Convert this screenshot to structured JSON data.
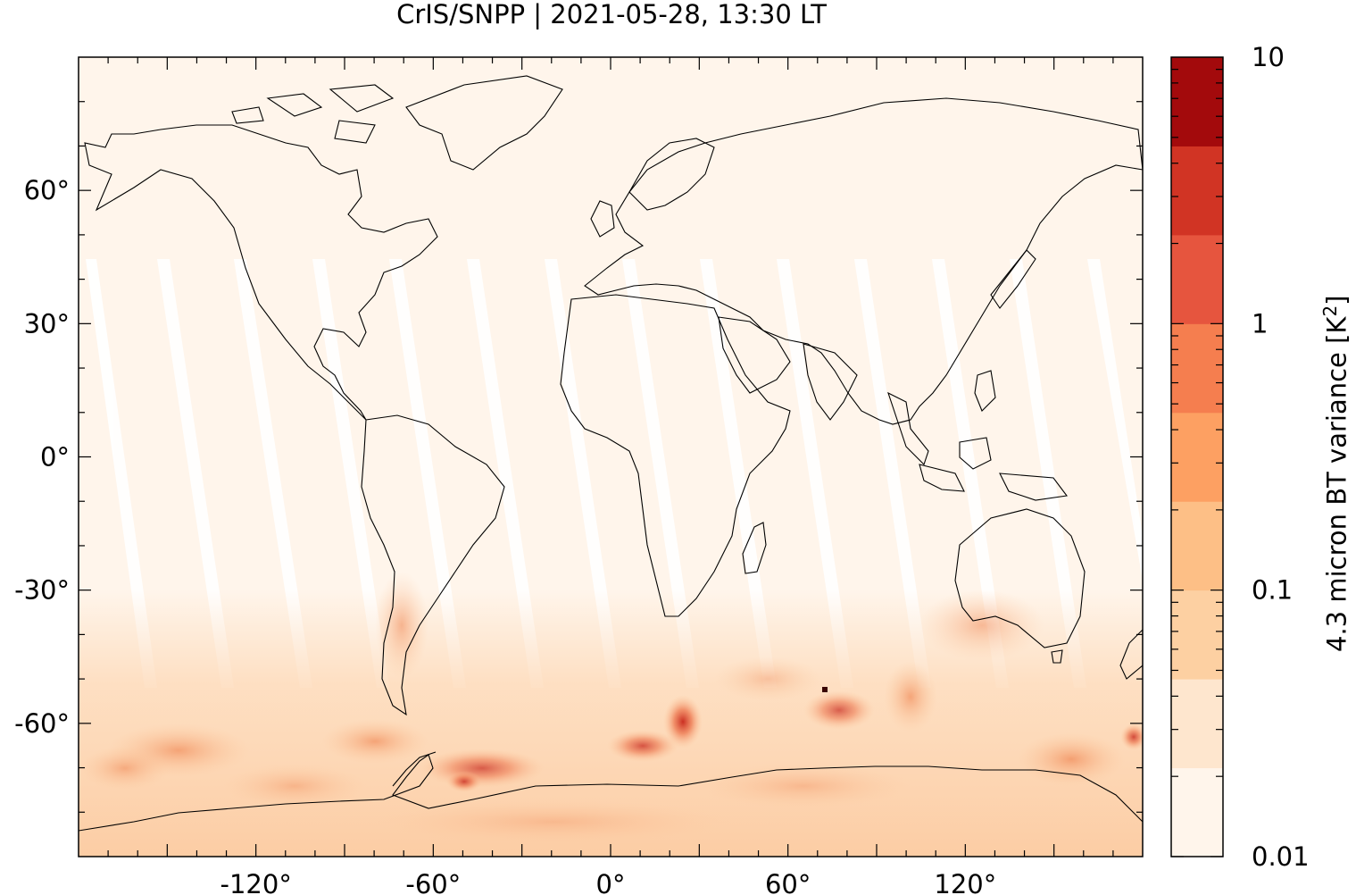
{
  "title": "CrIS/SNPP | 2021-05-28, 13:30 LT",
  "map": {
    "x_ticks": [
      "-120°",
      "-60°",
      "0°",
      "60°",
      "120°"
    ],
    "y_ticks": [
      "60°",
      "30°",
      "0°",
      "-30°",
      "-60°"
    ],
    "lon_range": [
      -180,
      180
    ],
    "lat_range": [
      -90,
      90
    ]
  },
  "colorbar": {
    "label": "4.3 micron BT variance [K",
    "label_sup": "2",
    "label_end": "]",
    "tick_labels": [
      "10",
      "1",
      "0.1",
      "0.01"
    ],
    "scale": "log",
    "range": [
      0.01,
      10
    ],
    "colors": [
      "#fff5eb",
      "#fee6ce",
      "#fdd0a2",
      "#fdbf86",
      "#fda062",
      "#f57e4f",
      "#e6553e",
      "#d13424",
      "#a30a0c"
    ]
  }
}
